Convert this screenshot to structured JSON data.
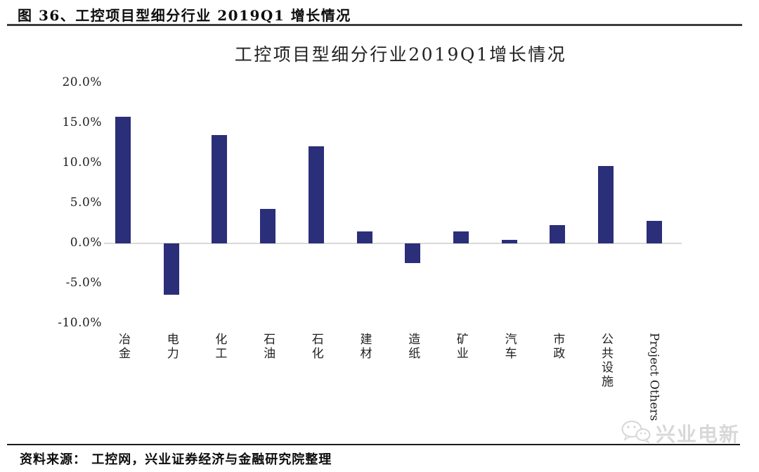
{
  "page": {
    "figure_caption": "图 36、工控项目型细分行业 2019Q1 增长情况"
  },
  "chart_data": {
    "type": "bar",
    "title": "工控项目型细分行业2019Q1增长情况",
    "categories": [
      "冶金",
      "电力",
      "化工",
      "石油",
      "石化",
      "建材",
      "造纸",
      "矿业",
      "汽车",
      "市政",
      "公共设施",
      "Project Others"
    ],
    "values": [
      15.8,
      -6.4,
      13.5,
      4.3,
      12.1,
      1.5,
      -2.5,
      1.5,
      0.4,
      2.3,
      9.7,
      2.8
    ],
    "unit": "%",
    "xlabel": "",
    "ylabel": "",
    "ylim": [
      -10,
      20
    ],
    "grid": false,
    "legend": "none",
    "y_ticks": [
      {
        "value": 20,
        "label": "20.0%"
      },
      {
        "value": 15,
        "label": "15.0%"
      },
      {
        "value": 10,
        "label": "10.0%"
      },
      {
        "value": 5,
        "label": "5.0%"
      },
      {
        "value": 0,
        "label": "0.0%"
      },
      {
        "value": -5,
        "label": "-5.0%"
      },
      {
        "value": -10,
        "label": "-10.0%"
      }
    ],
    "bar_color": "#2B2E78",
    "axis_line_color": "#D9D9D9"
  },
  "footer": {
    "source": "资料来源： 工控网，兴业证券经济与金融研究院整理"
  },
  "watermark": {
    "icon": "wechat-icon",
    "label": "兴业电新"
  }
}
